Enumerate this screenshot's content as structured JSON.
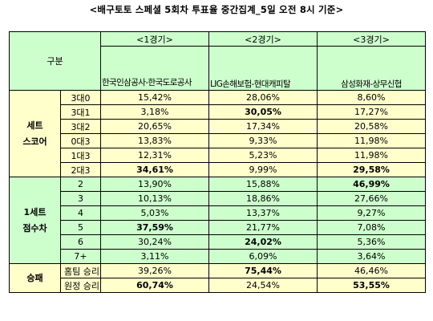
{
  "title": "<배구토토 스페셜 5회차 투표율 중간집계_5일 오전 8시 기준>",
  "header": {
    "gubun": "구분",
    "matches": [
      {
        "label": "<1경기>",
        "teams": "한국인삼공사-한국도로공사"
      },
      {
        "label": "<2경기>",
        "teams": "LIG손해보험-현대캐피탈"
      },
      {
        "label": "<3경기>",
        "teams": "삼성화재-상무신협"
      }
    ]
  },
  "groups": [
    {
      "name_line1": "세트",
      "name_line2": "스코어",
      "rows": [
        {
          "label": "3대0",
          "values": [
            "15,42%",
            "28,06%",
            "8,60%"
          ],
          "bold": [
            false,
            false,
            false
          ]
        },
        {
          "label": "3대1",
          "values": [
            "3,18%",
            "30,05%",
            "17,27%"
          ],
          "bold": [
            false,
            true,
            false
          ]
        },
        {
          "label": "3대2",
          "values": [
            "20,65%",
            "17,34%",
            "20,58%"
          ],
          "bold": [
            false,
            false,
            false
          ]
        },
        {
          "label": "0대3",
          "values": [
            "13,83%",
            "9,33%",
            "11,98%"
          ],
          "bold": [
            false,
            false,
            false
          ]
        },
        {
          "label": "1대3",
          "values": [
            "12,31%",
            "5,23%",
            "11,98%"
          ],
          "bold": [
            false,
            false,
            false
          ]
        },
        {
          "label": "2대3",
          "values": [
            "34,61%",
            "9,99%",
            "29,58%"
          ],
          "bold": [
            true,
            false,
            true
          ]
        }
      ]
    },
    {
      "name_line1": "1세트",
      "name_line2": "점수차",
      "rows": [
        {
          "label": "2",
          "values": [
            "13,90%",
            "15,88%",
            "46,99%"
          ],
          "bold": [
            false,
            false,
            true
          ]
        },
        {
          "label": "3",
          "values": [
            "10,13%",
            "18,86%",
            "27,66%"
          ],
          "bold": [
            false,
            false,
            false
          ]
        },
        {
          "label": "4",
          "values": [
            "5,03%",
            "13,37%",
            "9,27%"
          ],
          "bold": [
            false,
            false,
            false
          ]
        },
        {
          "label": "5",
          "values": [
            "37,59%",
            "21,77%",
            "7,08%"
          ],
          "bold": [
            true,
            false,
            false
          ]
        },
        {
          "label": "6",
          "values": [
            "30,24%",
            "24,02%",
            "5,36%"
          ],
          "bold": [
            false,
            true,
            false
          ]
        },
        {
          "label": "7+",
          "values": [
            "3,11%",
            "6,09%",
            "3,64%"
          ],
          "bold": [
            false,
            false,
            false
          ]
        }
      ]
    },
    {
      "name_line1": "승패",
      "name_line2": "",
      "rows": [
        {
          "label": "홈팀 승리",
          "values": [
            "39,26%",
            "75,44%",
            "46,46%"
          ],
          "bold": [
            false,
            true,
            false
          ]
        },
        {
          "label": "원정 승리",
          "values": [
            "60,74%",
            "24,54%",
            "53,55%"
          ],
          "bold": [
            true,
            false,
            true
          ]
        }
      ]
    }
  ]
}
